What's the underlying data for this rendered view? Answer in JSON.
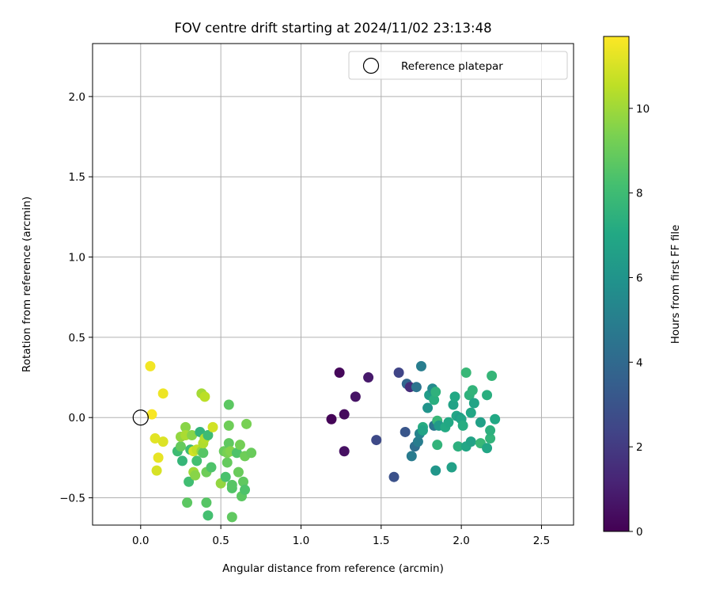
{
  "chart_data": {
    "type": "scatter",
    "title": "FOV centre drift starting at 2024/11/02 23:13:48",
    "xlabel": "Angular distance from reference (arcmin)",
    "ylabel": "Rotation from reference (arcmin)",
    "xlim": [
      -0.3,
      2.7
    ],
    "ylim": [
      -0.67,
      2.33
    ],
    "xticks": [
      0.0,
      0.5,
      1.0,
      1.5,
      2.0,
      2.5
    ],
    "xtick_labels": [
      "0.0",
      "0.5",
      "1.0",
      "1.5",
      "2.0",
      "2.5"
    ],
    "yticks": [
      -0.5,
      0.0,
      0.5,
      1.0,
      1.5,
      2.0
    ],
    "ytick_labels": [
      "−0.5",
      "0.0",
      "0.5",
      "1.0",
      "1.5",
      "2.0"
    ],
    "grid": true,
    "legend": {
      "position": "top-right",
      "entries": [
        "Reference platepar"
      ]
    },
    "reference_point": {
      "x": 0.0,
      "y": 0.0,
      "label": "Reference platepar"
    },
    "colorbar": {
      "label": "Hours from first FF file",
      "colormap": "viridis",
      "range": [
        0,
        11.7
      ],
      "ticks": [
        0,
        2,
        4,
        6,
        8,
        10
      ],
      "tick_labels": [
        "0",
        "2",
        "4",
        "6",
        "8",
        "10"
      ]
    },
    "points": [
      {
        "x": 1.19,
        "y": -0.01,
        "c": 0.1
      },
      {
        "x": 1.24,
        "y": 0.28,
        "c": 0.2
      },
      {
        "x": 1.27,
        "y": 0.02,
        "c": 0.3
      },
      {
        "x": 1.27,
        "y": -0.21,
        "c": 0.5
      },
      {
        "x": 1.34,
        "y": 0.13,
        "c": 0.6
      },
      {
        "x": 1.42,
        "y": 0.25,
        "c": 0.8
      },
      {
        "x": 1.47,
        "y": -0.14,
        "c": 2.6
      },
      {
        "x": 1.58,
        "y": -0.37,
        "c": 2.9
      },
      {
        "x": 1.61,
        "y": 0.28,
        "c": 2.4
      },
      {
        "x": 1.65,
        "y": -0.09,
        "c": 3.1
      },
      {
        "x": 1.66,
        "y": 0.21,
        "c": 3.8
      },
      {
        "x": 1.68,
        "y": 0.19,
        "c": 1.5
      },
      {
        "x": 1.69,
        "y": -0.24,
        "c": 4.8
      },
      {
        "x": 1.71,
        "y": -0.18,
        "c": 4.2
      },
      {
        "x": 1.72,
        "y": 0.19,
        "c": 4.5
      },
      {
        "x": 1.73,
        "y": -0.15,
        "c": 4.9
      },
      {
        "x": 1.74,
        "y": -0.1,
        "c": 5.2
      },
      {
        "x": 1.75,
        "y": 0.32,
        "c": 4.9
      },
      {
        "x": 1.76,
        "y": -0.06,
        "c": 7.2
      },
      {
        "x": 1.76,
        "y": -0.08,
        "c": 6.8
      },
      {
        "x": 1.79,
        "y": 0.06,
        "c": 6.0
      },
      {
        "x": 1.8,
        "y": 0.14,
        "c": 6.4
      },
      {
        "x": 1.82,
        "y": 0.18,
        "c": 5.5
      },
      {
        "x": 1.83,
        "y": -0.05,
        "c": 4.6
      },
      {
        "x": 1.83,
        "y": 0.11,
        "c": 7.3
      },
      {
        "x": 1.84,
        "y": 0.16,
        "c": 7.5
      },
      {
        "x": 1.84,
        "y": -0.33,
        "c": 6.1
      },
      {
        "x": 1.85,
        "y": -0.17,
        "c": 7.6
      },
      {
        "x": 1.85,
        "y": -0.02,
        "c": 7.8
      },
      {
        "x": 1.86,
        "y": -0.05,
        "c": 6.3
      },
      {
        "x": 1.9,
        "y": -0.06,
        "c": 7.1
      },
      {
        "x": 1.92,
        "y": -0.03,
        "c": 7.0
      },
      {
        "x": 1.94,
        "y": -0.31,
        "c": 6.6
      },
      {
        "x": 1.95,
        "y": 0.08,
        "c": 6.7
      },
      {
        "x": 1.96,
        "y": 0.13,
        "c": 7.0
      },
      {
        "x": 1.97,
        "y": 0.01,
        "c": 6.9
      },
      {
        "x": 1.98,
        "y": -0.18,
        "c": 7.4
      },
      {
        "x": 1.99,
        "y": 0.0,
        "c": 6.5
      },
      {
        "x": 2.0,
        "y": -0.01,
        "c": 6.8
      },
      {
        "x": 2.01,
        "y": -0.05,
        "c": 7.2
      },
      {
        "x": 2.03,
        "y": -0.18,
        "c": 6.9
      },
      {
        "x": 2.03,
        "y": 0.28,
        "c": 7.8
      },
      {
        "x": 2.05,
        "y": 0.14,
        "c": 7.5
      },
      {
        "x": 2.06,
        "y": 0.03,
        "c": 6.9
      },
      {
        "x": 2.06,
        "y": -0.15,
        "c": 6.7
      },
      {
        "x": 2.07,
        "y": 0.17,
        "c": 7.6
      },
      {
        "x": 2.08,
        "y": 0.09,
        "c": 6.8
      },
      {
        "x": 2.12,
        "y": -0.03,
        "c": 6.6
      },
      {
        "x": 2.12,
        "y": -0.16,
        "c": 7.8
      },
      {
        "x": 2.16,
        "y": 0.14,
        "c": 7.3
      },
      {
        "x": 2.16,
        "y": -0.19,
        "c": 6.9
      },
      {
        "x": 2.18,
        "y": -0.13,
        "c": 7.6
      },
      {
        "x": 2.18,
        "y": -0.08,
        "c": 7.4
      },
      {
        "x": 2.19,
        "y": 0.26,
        "c": 7.7
      },
      {
        "x": 2.21,
        "y": -0.01,
        "c": 7.0
      },
      {
        "x": 0.06,
        "y": 0.32,
        "c": 11.5
      },
      {
        "x": 0.07,
        "y": 0.02,
        "c": 11.6
      },
      {
        "x": 0.09,
        "y": -0.13,
        "c": 11.2
      },
      {
        "x": 0.1,
        "y": -0.33,
        "c": 11.0
      },
      {
        "x": 0.11,
        "y": -0.25,
        "c": 11.3
      },
      {
        "x": 0.14,
        "y": 0.15,
        "c": 11.4
      },
      {
        "x": 0.14,
        "y": -0.15,
        "c": 11.1
      },
      {
        "x": 0.23,
        "y": -0.21,
        "c": 8.0
      },
      {
        "x": 0.25,
        "y": -0.18,
        "c": 8.9
      },
      {
        "x": 0.25,
        "y": -0.12,
        "c": 9.8
      },
      {
        "x": 0.26,
        "y": -0.27,
        "c": 7.7
      },
      {
        "x": 0.28,
        "y": -0.06,
        "c": 9.6
      },
      {
        "x": 0.28,
        "y": -0.11,
        "c": 10.2
      },
      {
        "x": 0.29,
        "y": -0.53,
        "c": 8.7
      },
      {
        "x": 0.3,
        "y": -0.4,
        "c": 8.1
      },
      {
        "x": 0.31,
        "y": -0.2,
        "c": 8.0
      },
      {
        "x": 0.32,
        "y": -0.11,
        "c": 9.6
      },
      {
        "x": 0.33,
        "y": -0.21,
        "c": 10.9
      },
      {
        "x": 0.33,
        "y": -0.34,
        "c": 10.0
      },
      {
        "x": 0.34,
        "y": -0.36,
        "c": 9.6
      },
      {
        "x": 0.35,
        "y": -0.2,
        "c": 10.6
      },
      {
        "x": 0.35,
        "y": -0.27,
        "c": 8.2
      },
      {
        "x": 0.37,
        "y": -0.09,
        "c": 7.6
      },
      {
        "x": 0.38,
        "y": -0.21,
        "c": 9.8
      },
      {
        "x": 0.38,
        "y": 0.15,
        "c": 10.1
      },
      {
        "x": 0.39,
        "y": -0.22,
        "c": 8.6
      },
      {
        "x": 0.39,
        "y": -0.16,
        "c": 10.3
      },
      {
        "x": 0.4,
        "y": -0.13,
        "c": 10.4
      },
      {
        "x": 0.4,
        "y": 0.13,
        "c": 10.5
      },
      {
        "x": 0.41,
        "y": -0.34,
        "c": 9.1
      },
      {
        "x": 0.41,
        "y": -0.53,
        "c": 8.6
      },
      {
        "x": 0.42,
        "y": -0.61,
        "c": 8.2
      },
      {
        "x": 0.42,
        "y": -0.11,
        "c": 8.0
      },
      {
        "x": 0.44,
        "y": -0.31,
        "c": 8.4
      },
      {
        "x": 0.45,
        "y": -0.06,
        "c": 10.9
      },
      {
        "x": 0.5,
        "y": -0.41,
        "c": 9.8
      },
      {
        "x": 0.52,
        "y": -0.21,
        "c": 9.0
      },
      {
        "x": 0.53,
        "y": -0.37,
        "c": 8.3
      },
      {
        "x": 0.54,
        "y": -0.28,
        "c": 8.9
      },
      {
        "x": 0.54,
        "y": -0.22,
        "c": 9.3
      },
      {
        "x": 0.55,
        "y": 0.08,
        "c": 8.7
      },
      {
        "x": 0.55,
        "y": -0.16,
        "c": 8.8
      },
      {
        "x": 0.55,
        "y": -0.05,
        "c": 9.1
      },
      {
        "x": 0.56,
        "y": -0.21,
        "c": 9.5
      },
      {
        "x": 0.57,
        "y": -0.62,
        "c": 8.8
      },
      {
        "x": 0.57,
        "y": -0.44,
        "c": 8.5
      },
      {
        "x": 0.57,
        "y": -0.42,
        "c": 8.6
      },
      {
        "x": 0.6,
        "y": -0.22,
        "c": 8.4
      },
      {
        "x": 0.61,
        "y": -0.34,
        "c": 9.0
      },
      {
        "x": 0.62,
        "y": -0.17,
        "c": 9.2
      },
      {
        "x": 0.63,
        "y": -0.49,
        "c": 8.7
      },
      {
        "x": 0.64,
        "y": -0.4,
        "c": 8.8
      },
      {
        "x": 0.65,
        "y": -0.45,
        "c": 8.4
      },
      {
        "x": 0.65,
        "y": -0.24,
        "c": 9.1
      },
      {
        "x": 0.66,
        "y": -0.04,
        "c": 9.3
      },
      {
        "x": 0.69,
        "y": -0.22,
        "c": 9.0
      }
    ]
  }
}
